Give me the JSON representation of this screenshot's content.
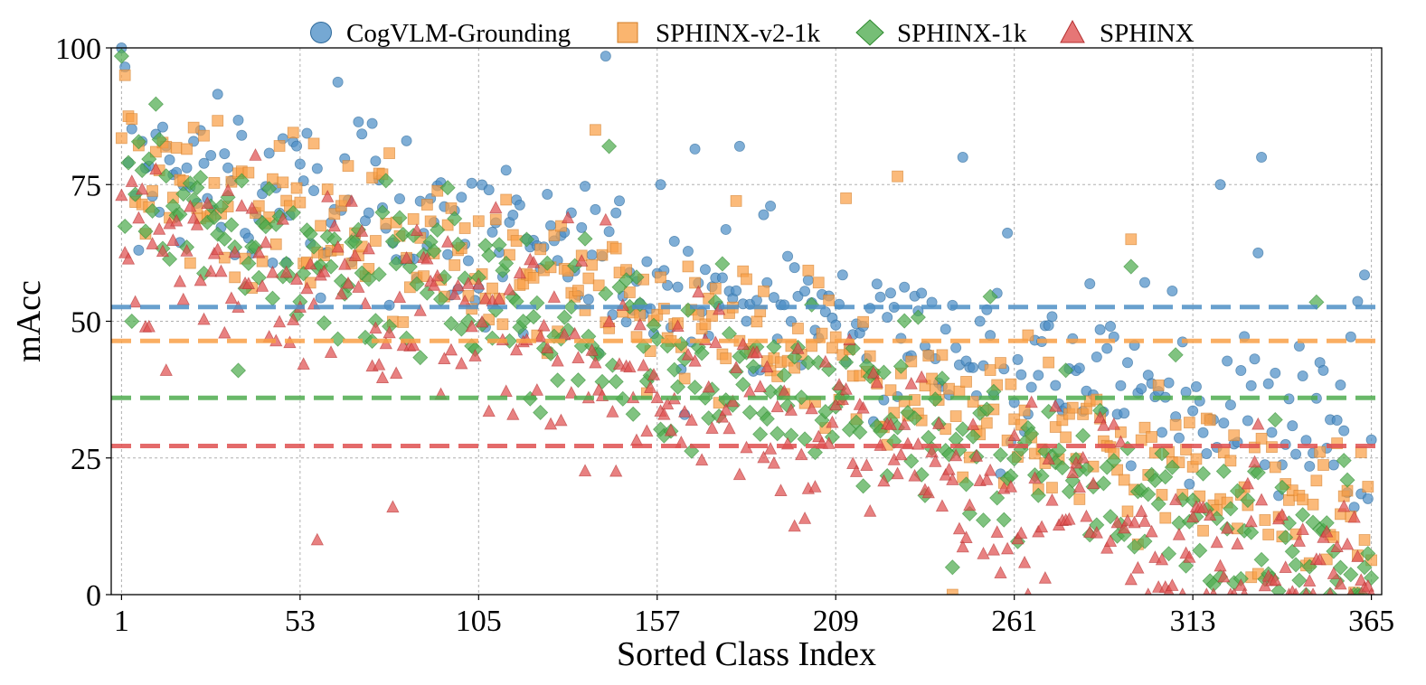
{
  "chart_data": {
    "type": "scatter",
    "title": "",
    "xlabel": "Sorted Class Index",
    "ylabel": "mAcc",
    "xlim": [
      -2,
      368
    ],
    "ylim": [
      0,
      100
    ],
    "x_ticks": [
      1,
      53,
      105,
      157,
      209,
      261,
      313,
      365
    ],
    "y_ticks": [
      0,
      25,
      50,
      75,
      100
    ],
    "grid": true,
    "legend_position": "top",
    "num_classes": 365,
    "series": [
      {
        "name": "CogVLM-Grounding",
        "marker": "circle",
        "color": "#4e8fc6",
        "mean": 52.6,
        "trend": {
          "start": 78,
          "end": 28
        },
        "sample_points": [
          [
            1,
            100
          ],
          [
            2,
            96.5
          ],
          [
            3,
            79
          ],
          [
            5,
            73
          ],
          [
            6,
            63
          ],
          [
            36,
            84
          ],
          [
            84,
            83
          ],
          [
            142,
            98.5
          ],
          [
            158,
            75
          ],
          [
            168,
            81.5
          ],
          [
            181,
            82
          ],
          [
            246,
            80
          ],
          [
            321,
            75
          ],
          [
            333,
            80
          ],
          [
            332,
            62.5
          ],
          [
            345,
            40
          ],
          [
            353,
            32
          ],
          [
            360,
            16
          ]
        ]
      },
      {
        "name": "SPHINX-v2-1k",
        "marker": "square",
        "color": "#f9a046",
        "mean": 46.4,
        "trend": {
          "start": 77,
          "end": 12
        },
        "sample_points": [
          [
            1,
            83.5
          ],
          [
            2,
            95
          ],
          [
            3,
            87.5
          ],
          [
            4,
            87
          ],
          [
            11,
            81
          ],
          [
            51,
            84.5
          ],
          [
            57,
            82.5
          ],
          [
            139,
            85
          ],
          [
            180,
            72
          ],
          [
            212,
            72.5
          ],
          [
            227,
            76.5
          ],
          [
            295,
            65
          ],
          [
            358,
            19
          ],
          [
            363,
            10
          ],
          [
            243,
            0
          ]
        ]
      },
      {
        "name": "SPHINX-1k",
        "marker": "diamond",
        "color": "#4fac4f",
        "mean": 36.0,
        "trend": {
          "start": 72,
          "end": 5
        },
        "sample_points": [
          [
            1,
            98.5
          ],
          [
            3,
            79
          ],
          [
            4,
            50
          ],
          [
            35,
            41
          ],
          [
            143,
            82
          ],
          [
            176,
            60.5
          ],
          [
            254,
            54.5
          ],
          [
            295,
            60
          ],
          [
            349,
            53.5
          ],
          [
            243,
            5
          ],
          [
            353,
            0
          ],
          [
            363,
            5
          ]
        ]
      },
      {
        "name": "SPHINX",
        "marker": "triangle",
        "color": "#df5050",
        "mean": 27.2,
        "trend": {
          "start": 66,
          "end": 1
        },
        "sample_points": [
          [
            1,
            73
          ],
          [
            2,
            62.5
          ],
          [
            5,
            53.5
          ],
          [
            14,
            41
          ],
          [
            58,
            10
          ],
          [
            80,
            16
          ],
          [
            142,
            68.5
          ],
          [
            197,
            12.5
          ],
          [
            245,
            12
          ],
          [
            265,
            0
          ],
          [
            300,
            0
          ],
          [
            365,
            0
          ]
        ]
      }
    ]
  }
}
